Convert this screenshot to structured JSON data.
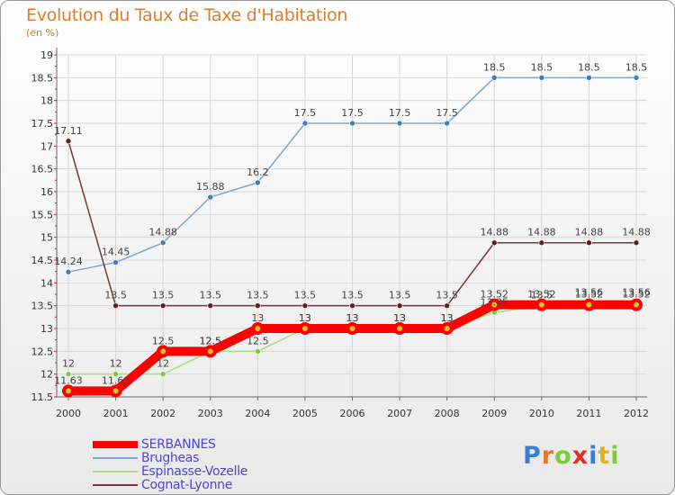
{
  "header": {
    "title": "Evolution du Taux de Taxe d'Habitation",
    "unit": "(en %)"
  },
  "logo": {
    "letters": [
      "P",
      "r",
      "o",
      "x",
      "i",
      "t",
      "i"
    ]
  },
  "colors": {
    "frame_border": "#9a9a9a",
    "title": "#e07b2a",
    "grid": "#d6d6d6",
    "axis": "#666666",
    "tick_marker": "#e0007a"
  },
  "chart_data": {
    "type": "line",
    "title": "Evolution du Taux de Taxe d'Habitation",
    "ylabel": "(en %)",
    "xlabel": "",
    "x": [
      "2000",
      "2001",
      "2002",
      "2003",
      "2004",
      "2005",
      "2006",
      "2007",
      "2008",
      "2009",
      "2010",
      "2011",
      "2012"
    ],
    "ylim": [
      11.5,
      19
    ],
    "yticks": [
      "11.5",
      "12",
      "12.5",
      "13",
      "13.5",
      "14",
      "14.5",
      "15",
      "15.5",
      "16",
      "16.5",
      "17",
      "17.5",
      "18",
      "18.5",
      "19"
    ],
    "grid": true,
    "legend_position": "bottom-left",
    "series": [
      {
        "name": "SERBANNES",
        "color": "#ff0000",
        "marker_color": "#e8c020",
        "width": 10,
        "values": [
          11.63,
          11.63,
          12.5,
          12.5,
          13,
          13,
          13,
          13,
          13,
          13.52,
          13.52,
          13.52,
          13.52
        ],
        "labels": [
          "11.63",
          "11.63",
          "12.5",
          "12.5",
          "13",
          "13",
          "13",
          "13",
          "13",
          "13.52",
          "13.52",
          "13.52",
          "13.52"
        ]
      },
      {
        "name": "Brugheas",
        "color": "#7fa7c8",
        "marker_color": "#3a7fc0",
        "width": 1.5,
        "values": [
          14.24,
          14.45,
          14.88,
          15.88,
          16.2,
          17.5,
          17.5,
          17.5,
          17.5,
          18.5,
          18.5,
          18.5,
          18.5
        ],
        "labels": [
          "14.24",
          "14.45",
          "14.88",
          "15.88",
          "16.2",
          "17.5",
          "17.5",
          "17.5",
          "17.5",
          "18.5",
          "18.5",
          "18.5",
          "18.5"
        ]
      },
      {
        "name": "Espinasse-Vozelle",
        "color": "#a8dc7c",
        "marker_color": "#7ecb3a",
        "width": 1.5,
        "values": [
          12,
          12,
          12,
          12.5,
          12.5,
          13,
          13,
          13,
          13,
          13.35,
          13.5,
          13.56,
          13.56
        ],
        "labels": [
          "12",
          "12",
          "12",
          "12.5",
          "12.5",
          "13",
          "13",
          "13",
          "13",
          "13.35",
          "13.5",
          "13.56",
          "13.56"
        ]
      },
      {
        "name": "Cognat-Lyonne",
        "color": "#7a3636",
        "marker_color": "#6a1a1a",
        "width": 1.5,
        "values": [
          17.11,
          13.5,
          13.5,
          13.5,
          13.5,
          13.5,
          13.5,
          13.5,
          13.5,
          14.88,
          14.88,
          14.88,
          14.88
        ],
        "labels": [
          "17.11",
          "13.5",
          "13.5",
          "13.5",
          "13.5",
          "13.5",
          "13.5",
          "13.5",
          "13.5",
          "14.88",
          "14.88",
          "14.88",
          "14.88"
        ]
      }
    ]
  }
}
